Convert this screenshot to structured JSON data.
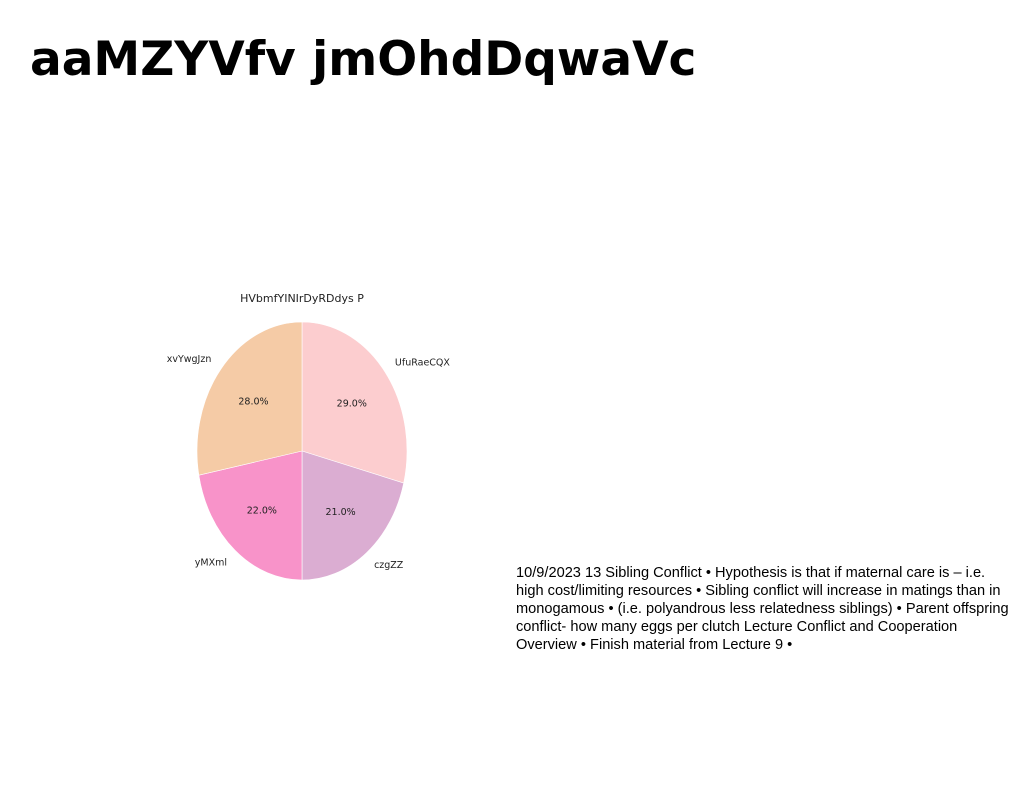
{
  "slide": {
    "title": "aaMZYVfv jmOhdDqwaVc",
    "body_text": "10/9/2023 13 Sibling Conflict • Hypothesis is that if maternal care is – i.e. high cost/limiting resources • Sibling conflict will increase in matings than in monogamous • (i.e. polyandrous less relatedness siblings) • Parent offspring conflict- how many eggs per clutch Lecture Conflict and Cooperation Overview • Finish material from Lecture 9 •"
  },
  "chart_data": {
    "type": "pie",
    "title": "HVbmfYINIrDyRDdys P",
    "start_angle_deg": 90,
    "direction": "clockwise",
    "slices": [
      {
        "label": "UfuRaeCQX",
        "value": 29.0,
        "pct_label": "29.0%",
        "color": "#fccdcf"
      },
      {
        "label": "czgZZ",
        "value": 21.0,
        "pct_label": "21.0%",
        "color": "#dbadd2"
      },
      {
        "label": "yMXml",
        "value": 22.0,
        "pct_label": "22.0%",
        "color": "#f893c9"
      },
      {
        "label": "xvYwgJzn",
        "value": 28.0,
        "pct_label": "28.0%",
        "color": "#f5cba6"
      }
    ]
  }
}
